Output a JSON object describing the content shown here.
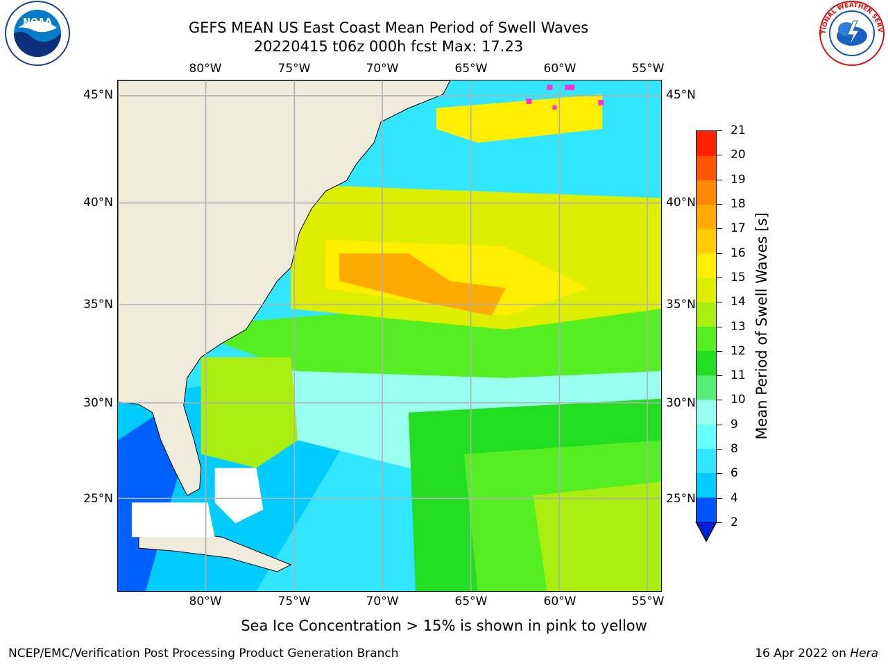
{
  "title": {
    "line1": "GEFS MEAN US East Coast Mean Period of Swell Waves",
    "line2": "20220415 t06z 000h fcst   Max: 17.23"
  },
  "logos": {
    "noaa_text": "NOAA",
    "nws_text": "NATIONAL WEATHER SERVICE"
  },
  "axes": {
    "lon_labels": [
      "80°W",
      "75°W",
      "70°W",
      "65°W",
      "60°W",
      "55°W"
    ],
    "lat_labels": [
      "45°N",
      "40°N",
      "35°N",
      "30°N",
      "25°N"
    ],
    "lon_range": [
      -85,
      -54
    ],
    "lat_range": [
      20.5,
      46
    ],
    "grid": true
  },
  "colorbar": {
    "label": "Mean Period of Swell Waves [s]",
    "ticks": [
      "2",
      "4",
      "6",
      "8",
      "9",
      "10",
      "11",
      "12",
      "13",
      "14",
      "15",
      "16",
      "17",
      "18",
      "19",
      "20",
      "21"
    ],
    "colors": [
      "#0055ff",
      "#00ccff",
      "#33e6ff",
      "#66ffff",
      "#99ffee",
      "#55ee77",
      "#22dd22",
      "#55ee22",
      "#aaee11",
      "#ddee00",
      "#ffee00",
      "#ffcc00",
      "#ffaa00",
      "#ff8800",
      "#ff5500",
      "#ff2200",
      "#ff0000"
    ],
    "under_color": "#0022dd"
  },
  "sea_ice_note": "Sea Ice Concentration > 15% is shown in pink to yellow",
  "footer": {
    "left": "NCEP/EMC/Verification Post Processing Product Generation Branch",
    "right_date": "16 Apr 2022 on ",
    "right_host": "Hera"
  },
  "palette": {
    "land": "#efecdc",
    "grid": "#b0b0b0",
    "coast": "#000000",
    "ice": "#ff33cc"
  }
}
